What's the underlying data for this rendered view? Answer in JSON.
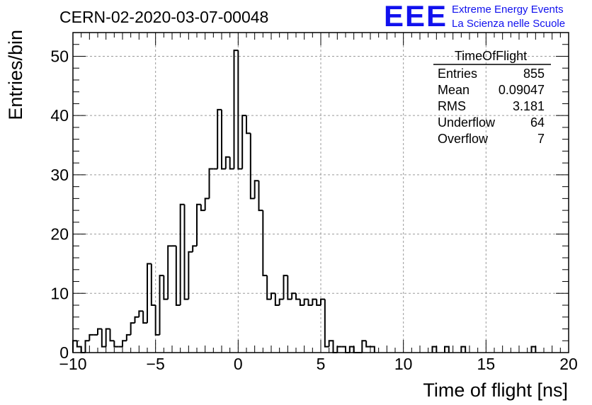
{
  "header": {
    "run_title": "CERN-02-2020-03-07-00048",
    "logo_text": "EEE",
    "logo_line1": "Extreme Energy Events",
    "logo_line2": "La Scienza nelle Scuole",
    "brand_color": "#1111ee"
  },
  "stats": {
    "name": "TimeOfFlight",
    "rows": [
      {
        "label": "Entries",
        "value": "855"
      },
      {
        "label": "Mean",
        "value": "0.09047"
      },
      {
        "label": "RMS",
        "value": "3.181"
      },
      {
        "label": "Underflow",
        "value": "64"
      },
      {
        "label": "Overflow",
        "value": "7"
      }
    ]
  },
  "chart_data": {
    "type": "bar",
    "style": "step-histogram",
    "title": "",
    "xlabel": "Time of flight [ns]",
    "ylabel": "Entries/bin",
    "xlim": [
      -10,
      20
    ],
    "ylim": [
      0,
      54
    ],
    "bin_width": 0.25,
    "xticks": [
      -10,
      -5,
      0,
      5,
      10,
      15,
      20
    ],
    "yticks": [
      0,
      10,
      20,
      30,
      40,
      50
    ],
    "grid": true,
    "legend": "none",
    "bins": [
      {
        "x": -10.0,
        "y": 2
      },
      {
        "x": -9.75,
        "y": 1
      },
      {
        "x": -9.5,
        "y": 0
      },
      {
        "x": -9.25,
        "y": 2
      },
      {
        "x": -9.0,
        "y": 3
      },
      {
        "x": -8.75,
        "y": 3
      },
      {
        "x": -8.5,
        "y": 4
      },
      {
        "x": -8.25,
        "y": 1
      },
      {
        "x": -8.0,
        "y": 4
      },
      {
        "x": -7.75,
        "y": 2
      },
      {
        "x": -7.5,
        "y": 1
      },
      {
        "x": -7.25,
        "y": 1
      },
      {
        "x": -7.0,
        "y": 2
      },
      {
        "x": -6.75,
        "y": 3
      },
      {
        "x": -6.5,
        "y": 5
      },
      {
        "x": -6.25,
        "y": 6
      },
      {
        "x": -6.0,
        "y": 7
      },
      {
        "x": -5.75,
        "y": 5
      },
      {
        "x": -5.5,
        "y": 15
      },
      {
        "x": -5.25,
        "y": 8
      },
      {
        "x": -5.0,
        "y": 3
      },
      {
        "x": -4.75,
        "y": 13
      },
      {
        "x": -4.5,
        "y": 9
      },
      {
        "x": -4.25,
        "y": 18
      },
      {
        "x": -4.0,
        "y": 18
      },
      {
        "x": -3.75,
        "y": 8
      },
      {
        "x": -3.5,
        "y": 25
      },
      {
        "x": -3.25,
        "y": 9
      },
      {
        "x": -3.0,
        "y": 17
      },
      {
        "x": -2.75,
        "y": 18
      },
      {
        "x": -2.5,
        "y": 25
      },
      {
        "x": -2.25,
        "y": 24
      },
      {
        "x": -2.0,
        "y": 26
      },
      {
        "x": -1.75,
        "y": 31
      },
      {
        "x": -1.5,
        "y": 31
      },
      {
        "x": -1.25,
        "y": 41
      },
      {
        "x": -1.0,
        "y": 31
      },
      {
        "x": -0.75,
        "y": 33
      },
      {
        "x": -0.5,
        "y": 31
      },
      {
        "x": -0.25,
        "y": 51
      },
      {
        "x": 0.0,
        "y": 31
      },
      {
        "x": 0.25,
        "y": 40
      },
      {
        "x": 0.5,
        "y": 37
      },
      {
        "x": 0.75,
        "y": 26
      },
      {
        "x": 1.0,
        "y": 29
      },
      {
        "x": 1.25,
        "y": 24
      },
      {
        "x": 1.5,
        "y": 13
      },
      {
        "x": 1.75,
        "y": 9
      },
      {
        "x": 2.0,
        "y": 10
      },
      {
        "x": 2.25,
        "y": 8
      },
      {
        "x": 2.5,
        "y": 9
      },
      {
        "x": 2.75,
        "y": 13
      },
      {
        "x": 3.0,
        "y": 9
      },
      {
        "x": 3.25,
        "y": 10
      },
      {
        "x": 3.5,
        "y": 9
      },
      {
        "x": 3.75,
        "y": 8
      },
      {
        "x": 4.0,
        "y": 9
      },
      {
        "x": 4.25,
        "y": 8
      },
      {
        "x": 4.5,
        "y": 9
      },
      {
        "x": 4.75,
        "y": 8
      },
      {
        "x": 5.0,
        "y": 9
      },
      {
        "x": 5.25,
        "y": 1
      },
      {
        "x": 5.5,
        "y": 2
      },
      {
        "x": 5.75,
        "y": 0
      },
      {
        "x": 6.0,
        "y": 1
      },
      {
        "x": 6.25,
        "y": 1
      },
      {
        "x": 6.5,
        "y": 0
      },
      {
        "x": 6.75,
        "y": 1
      },
      {
        "x": 7.0,
        "y": 0
      },
      {
        "x": 7.25,
        "y": 0
      },
      {
        "x": 7.5,
        "y": 2
      },
      {
        "x": 7.75,
        "y": 1
      },
      {
        "x": 8.0,
        "y": 1
      },
      {
        "x": 11.75,
        "y": 1
      },
      {
        "x": 12.5,
        "y": 1
      },
      {
        "x": 13.5,
        "y": 1
      },
      {
        "x": 17.75,
        "y": 1
      }
    ]
  }
}
